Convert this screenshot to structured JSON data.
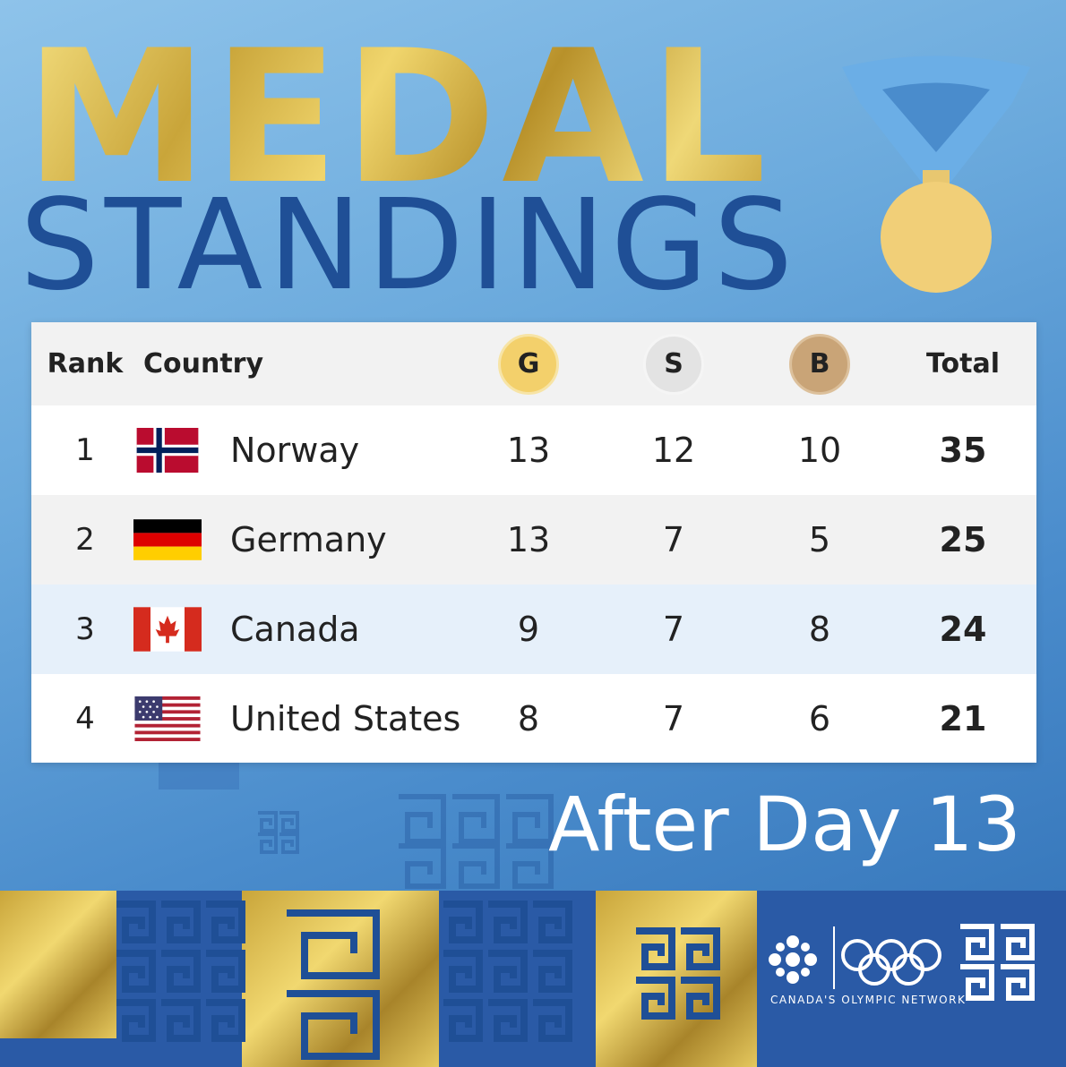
{
  "title": {
    "line1": "MEDAL",
    "line2": "STANDINGS"
  },
  "table": {
    "headers": {
      "rank": "Rank",
      "country": "Country",
      "gold": "G",
      "silver": "S",
      "bronze": "B",
      "total": "Total"
    },
    "rows": [
      {
        "rank": "1",
        "country": "Norway",
        "gold": "13",
        "silver": "12",
        "bronze": "10",
        "total": "35",
        "flag": "norway-flag-icon"
      },
      {
        "rank": "2",
        "country": "Germany",
        "gold": "13",
        "silver": "7",
        "bronze": "5",
        "total": "25",
        "flag": "germany-flag-icon"
      },
      {
        "rank": "3",
        "country": "Canada",
        "gold": "9",
        "silver": "7",
        "bronze": "8",
        "total": "24",
        "flag": "canada-flag-icon"
      },
      {
        "rank": "4",
        "country": "United States",
        "gold": "8",
        "silver": "7",
        "bronze": "6",
        "total": "21",
        "flag": "usa-flag-icon"
      }
    ]
  },
  "subtitle": "After Day 13",
  "footer": {
    "network": "CANADA'S OLYMPIC NETWORK"
  },
  "colors": {
    "gold_badge": "#f3d06b",
    "silver_badge": "#e3e3e3",
    "bronze_badge": "#c9a477",
    "title_blue": "#1f4f96",
    "canada_row": "#e6f0fa"
  }
}
